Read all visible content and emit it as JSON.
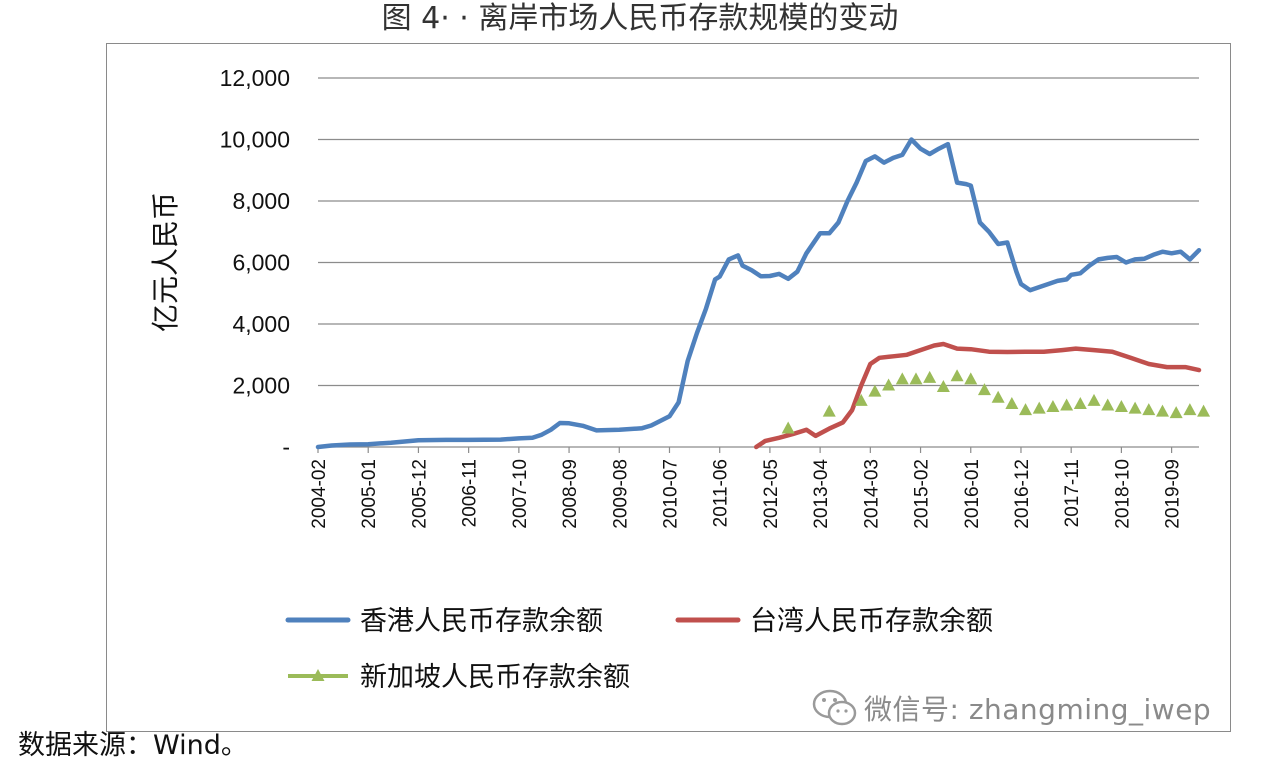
{
  "figure": {
    "title": "图 4· · 离岸市场人民币存款规模的变动",
    "source": "数据来源：Wind。",
    "watermark": "微信号: zhangming_iwep"
  },
  "chart_data": {
    "type": "line",
    "ylabel": "亿元人民币",
    "xlabel": "",
    "ylim": [
      0,
      12000
    ],
    "yticks": [
      0,
      2000,
      4000,
      6000,
      8000,
      10000,
      12000
    ],
    "ytick_labels": [
      "-",
      "2,000",
      "4,000",
      "6,000",
      "8,000",
      "10,000",
      "12,000"
    ],
    "grid": true,
    "legend_position": "bottom",
    "xlim": [
      "2004-02",
      "2020-03"
    ],
    "x_tick_labels": [
      "2004-02",
      "2005-01",
      "2005-12",
      "2006-11",
      "2007-10",
      "2008-09",
      "2009-08",
      "2010-07",
      "2011-06",
      "2012-05",
      "2013-04",
      "2014-03",
      "2015-02",
      "2016-01",
      "2016-12",
      "2017-11",
      "2018-10",
      "2019-09"
    ],
    "series": [
      {
        "name": "香港人民币存款余额",
        "style": "line",
        "color": "#4f81bd",
        "points": [
          [
            "2004-02",
            0
          ],
          [
            "2004-05",
            50
          ],
          [
            "2004-09",
            80
          ],
          [
            "2005-01",
            90
          ],
          [
            "2005-06",
            140
          ],
          [
            "2005-12",
            220
          ],
          [
            "2006-06",
            230
          ],
          [
            "2006-11",
            230
          ],
          [
            "2007-06",
            240
          ],
          [
            "2007-10",
            280
          ],
          [
            "2008-01",
            300
          ],
          [
            "2008-03",
            400
          ],
          [
            "2008-05",
            560
          ],
          [
            "2008-07",
            780
          ],
          [
            "2008-09",
            770
          ],
          [
            "2008-12",
            690
          ],
          [
            "2009-03",
            540
          ],
          [
            "2009-08",
            560
          ],
          [
            "2010-01",
            610
          ],
          [
            "2010-03",
            700
          ],
          [
            "2010-05",
            850
          ],
          [
            "2010-07",
            1000
          ],
          [
            "2010-09",
            1450
          ],
          [
            "2010-11",
            2800
          ],
          [
            "2011-01",
            3700
          ],
          [
            "2011-03",
            4500
          ],
          [
            "2011-05",
            5450
          ],
          [
            "2011-06",
            5540
          ],
          [
            "2011-08",
            6100
          ],
          [
            "2011-10",
            6230
          ],
          [
            "2011-11",
            5900
          ],
          [
            "2012-01",
            5750
          ],
          [
            "2012-03",
            5550
          ],
          [
            "2012-05",
            5560
          ],
          [
            "2012-07",
            5630
          ],
          [
            "2012-09",
            5470
          ],
          [
            "2012-11",
            5700
          ],
          [
            "2013-01",
            6300
          ],
          [
            "2013-04",
            6950
          ],
          [
            "2013-06",
            6950
          ],
          [
            "2013-08",
            7300
          ],
          [
            "2013-10",
            8000
          ],
          [
            "2013-12",
            8600
          ],
          [
            "2014-02",
            9300
          ],
          [
            "2014-04",
            9450
          ],
          [
            "2014-06",
            9250
          ],
          [
            "2014-08",
            9400
          ],
          [
            "2014-10",
            9500
          ],
          [
            "2014-12",
            10000
          ],
          [
            "2015-02",
            9700
          ],
          [
            "2015-04",
            9530
          ],
          [
            "2015-06",
            9700
          ],
          [
            "2015-08",
            9850
          ],
          [
            "2015-10",
            8600
          ],
          [
            "2015-12",
            8550
          ],
          [
            "2016-01",
            8500
          ],
          [
            "2016-03",
            7300
          ],
          [
            "2016-05",
            7000
          ],
          [
            "2016-07",
            6600
          ],
          [
            "2016-09",
            6650
          ],
          [
            "2016-11",
            5700
          ],
          [
            "2016-12",
            5300
          ],
          [
            "2017-02",
            5100
          ],
          [
            "2017-04",
            5200
          ],
          [
            "2017-06",
            5300
          ],
          [
            "2017-08",
            5400
          ],
          [
            "2017-10",
            5450
          ],
          [
            "2017-11",
            5600
          ],
          [
            "2018-01",
            5650
          ],
          [
            "2018-03",
            5900
          ],
          [
            "2018-05",
            6100
          ],
          [
            "2018-07",
            6150
          ],
          [
            "2018-09",
            6180
          ],
          [
            "2018-11",
            6000
          ],
          [
            "2019-01",
            6100
          ],
          [
            "2019-03",
            6120
          ],
          [
            "2019-05",
            6250
          ],
          [
            "2019-07",
            6350
          ],
          [
            "2019-09",
            6300
          ],
          [
            "2019-11",
            6350
          ],
          [
            "2020-01",
            6100
          ],
          [
            "2020-03",
            6400
          ]
        ]
      },
      {
        "name": "台湾人民币存款余额",
        "style": "line",
        "color": "#c0504d",
        "points": [
          [
            "2012-02",
            0
          ],
          [
            "2012-04",
            200
          ],
          [
            "2012-07",
            300
          ],
          [
            "2012-10",
            420
          ],
          [
            "2013-01",
            560
          ],
          [
            "2013-03",
            360
          ],
          [
            "2013-06",
            600
          ],
          [
            "2013-09",
            800
          ],
          [
            "2013-11",
            1200
          ],
          [
            "2014-01",
            2000
          ],
          [
            "2014-03",
            2700
          ],
          [
            "2014-05",
            2900
          ],
          [
            "2014-08",
            2950
          ],
          [
            "2014-11",
            3000
          ],
          [
            "2015-02",
            3150
          ],
          [
            "2015-05",
            3300
          ],
          [
            "2015-07",
            3350
          ],
          [
            "2015-10",
            3200
          ],
          [
            "2016-01",
            3180
          ],
          [
            "2016-05",
            3100
          ],
          [
            "2016-09",
            3090
          ],
          [
            "2017-01",
            3100
          ],
          [
            "2017-05",
            3100
          ],
          [
            "2017-09",
            3150
          ],
          [
            "2017-12",
            3200
          ],
          [
            "2018-04",
            3150
          ],
          [
            "2018-08",
            3100
          ],
          [
            "2018-12",
            2900
          ],
          [
            "2019-04",
            2700
          ],
          [
            "2019-08",
            2600
          ],
          [
            "2019-12",
            2600
          ],
          [
            "2020-03",
            2500
          ]
        ]
      },
      {
        "name": "新加坡人民币存款余额",
        "style": "markers",
        "color": "#9bbb59",
        "points": [
          [
            "2012-09",
            600
          ],
          [
            "2013-06",
            1150
          ],
          [
            "2014-01",
            1500
          ],
          [
            "2014-04",
            1800
          ],
          [
            "2014-07",
            2000
          ],
          [
            "2014-10",
            2200
          ],
          [
            "2015-01",
            2200
          ],
          [
            "2015-04",
            2250
          ],
          [
            "2015-07",
            1950
          ],
          [
            "2015-10",
            2300
          ],
          [
            "2016-01",
            2200
          ],
          [
            "2016-04",
            1850
          ],
          [
            "2016-07",
            1600
          ],
          [
            "2016-10",
            1400
          ],
          [
            "2017-01",
            1200
          ],
          [
            "2017-04",
            1250
          ],
          [
            "2017-07",
            1300
          ],
          [
            "2017-10",
            1350
          ],
          [
            "2018-01",
            1400
          ],
          [
            "2018-04",
            1500
          ],
          [
            "2018-07",
            1350
          ],
          [
            "2018-10",
            1300
          ],
          [
            "2019-01",
            1250
          ],
          [
            "2019-04",
            1200
          ],
          [
            "2019-07",
            1150
          ],
          [
            "2019-10",
            1100
          ],
          [
            "2020-01",
            1200
          ],
          [
            "2020-04",
            1150
          ]
        ]
      }
    ]
  }
}
